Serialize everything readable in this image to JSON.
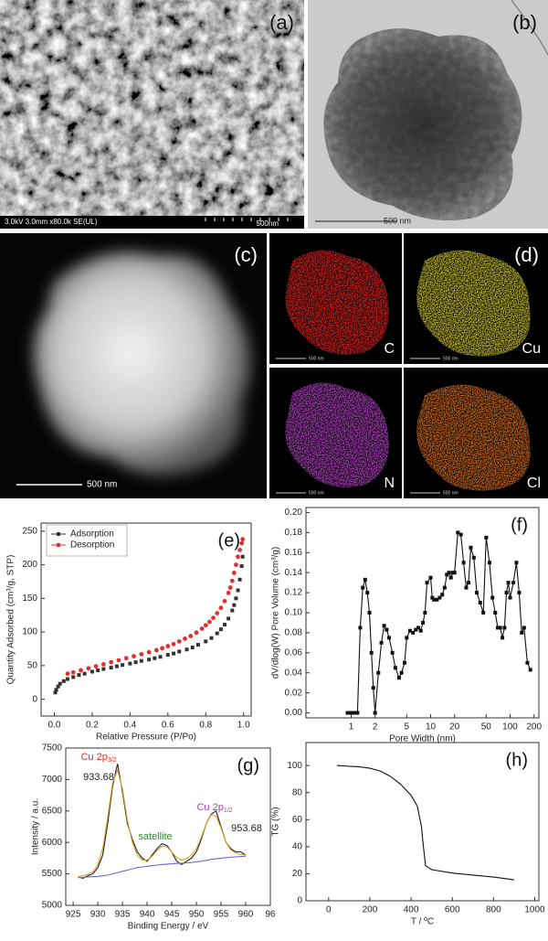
{
  "micrographs": {
    "a": {
      "label": "(a)",
      "info": "3.0kV 3.0mm x80.0k SE(UL)",
      "scale": "500nm"
    },
    "b": {
      "label": "(b)",
      "scale": "500 nm"
    },
    "c": {
      "label": "(c)",
      "scale": "500 nm"
    },
    "d": {
      "label": "(d)",
      "maps": [
        {
          "element": "C",
          "scale": "500 nm"
        },
        {
          "element": "Cu",
          "scale": "500 nm"
        },
        {
          "element": "N",
          "scale": "500 nm"
        },
        {
          "element": "Cl",
          "scale": "500 nm"
        }
      ]
    }
  },
  "chart_data": [
    {
      "type": "scatter",
      "label": "(e)",
      "xlabel": "Relative Pressure (P/Po)",
      "ylabel": "Quantity Adsorbed (cm³/g, STP)",
      "xlim": [
        -0.07,
        1.04
      ],
      "ylim": [
        -25,
        262
      ],
      "xticks": [
        {
          "value": 0,
          "label": "0.0"
        },
        {
          "value": 0.2,
          "label": "0.2"
        },
        {
          "value": 0.4,
          "label": "0.4"
        },
        {
          "value": 0.6,
          "label": "0.6"
        },
        {
          "value": 0.8,
          "label": "0.8"
        },
        {
          "value": 1,
          "label": "1.0"
        }
      ],
      "yticks": [
        0,
        50,
        100,
        150,
        200,
        250
      ],
      "legend": "upper left",
      "series": [
        {
          "name": "Adsorption",
          "color": "#333333",
          "marker": "square",
          "x": [
            0.005,
            0.01,
            0.02,
            0.03,
            0.05,
            0.07,
            0.1,
            0.13,
            0.16,
            0.2,
            0.23,
            0.26,
            0.3,
            0.33,
            0.36,
            0.4,
            0.43,
            0.46,
            0.5,
            0.53,
            0.56,
            0.6,
            0.63,
            0.66,
            0.7,
            0.73,
            0.76,
            0.8,
            0.83,
            0.86,
            0.88,
            0.9,
            0.92,
            0.94,
            0.95,
            0.96,
            0.97,
            0.98,
            0.99,
            0.995
          ],
          "values": [
            10,
            14,
            19,
            23,
            27,
            30,
            33,
            36,
            38,
            41,
            43,
            45,
            47,
            49,
            51,
            53,
            55,
            57,
            59,
            61,
            63,
            66,
            68,
            71,
            74,
            77,
            81,
            86,
            91,
            98,
            104,
            111,
            120,
            132,
            140,
            150,
            162,
            178,
            198,
            212
          ]
        },
        {
          "name": "Desorption",
          "color": "#e03030",
          "marker": "circle",
          "x": [
            0.995,
            0.99,
            0.98,
            0.97,
            0.96,
            0.95,
            0.94,
            0.93,
            0.92,
            0.9,
            0.88,
            0.86,
            0.84,
            0.82,
            0.8,
            0.78,
            0.75,
            0.72,
            0.69,
            0.66,
            0.63,
            0.6,
            0.57,
            0.54,
            0.5,
            0.46,
            0.42,
            0.38,
            0.34,
            0.3,
            0.26,
            0.22,
            0.18,
            0.14,
            0.1,
            0.07
          ],
          "values": [
            238,
            232,
            222,
            212,
            200,
            188,
            176,
            166,
            158,
            146,
            136,
            128,
            121,
            115,
            110,
            105,
            99,
            94,
            90,
            86,
            82,
            79,
            76,
            73,
            70,
            67,
            64,
            61,
            58,
            55,
            52,
            49,
            46,
            43,
            40,
            38
          ]
        }
      ]
    },
    {
      "type": "line",
      "label": "(f)",
      "xlabel": "Pore Width (nm)",
      "ylabel": "dV/dlog(W) Pore Volume (cm³/g)",
      "xscale": "log",
      "xlim": [
        0.27,
        230
      ],
      "ylim": [
        -0.005,
        0.205
      ],
      "xticks": [
        1,
        2,
        5,
        10,
        20,
        50,
        100,
        200
      ],
      "yticks": [
        {
          "value": 0,
          "label": "0.00"
        },
        {
          "value": 0.02,
          "label": "0.02"
        },
        {
          "value": 0.04,
          "label": "0.04"
        },
        {
          "value": 0.06,
          "label": "0.06"
        },
        {
          "value": 0.08,
          "label": "0.08"
        },
        {
          "value": 0.1,
          "label": "0.10"
        },
        {
          "value": 0.12,
          "label": "0.12"
        },
        {
          "value": 0.14,
          "label": "0.14"
        },
        {
          "value": 0.16,
          "label": "0.16"
        },
        {
          "value": 0.18,
          "label": "0.18"
        },
        {
          "value": 0.2,
          "label": "0.20"
        }
      ],
      "series": [
        {
          "color": "#111111",
          "marker": "square",
          "line": true,
          "x": [
            0.9,
            1.0,
            1.1,
            1.2,
            1.3,
            1.4,
            1.5,
            1.6,
            1.7,
            1.8,
            1.9,
            2.0,
            2.2,
            2.4,
            2.6,
            2.8,
            3.0,
            3.3,
            3.6,
            4.0,
            4.3,
            4.7,
            5.0,
            5.5,
            6.0,
            6.5,
            7.0,
            7.5,
            8.0,
            8.5,
            9.0,
            10,
            10.5,
            11,
            12,
            13,
            14,
            15,
            16,
            17,
            18,
            19,
            20,
            22,
            24,
            26,
            28,
            30,
            32,
            35,
            38,
            42,
            46,
            50,
            55,
            60,
            65,
            70,
            75,
            80,
            85,
            90,
            95,
            100,
            110,
            120,
            130,
            140,
            150,
            165,
            180
          ],
          "values": [
            0,
            0,
            0,
            0,
            0.085,
            0.125,
            0.133,
            0.12,
            0.1,
            0.06,
            0.025,
            0.0,
            0.04,
            0.07,
            0.087,
            0.083,
            0.075,
            0.06,
            0.045,
            0.035,
            0.04,
            0.05,
            0.075,
            0.082,
            0.08,
            0.083,
            0.085,
            0.082,
            0.09,
            0.1,
            0.13,
            0.135,
            0.115,
            0.113,
            0.113,
            0.115,
            0.118,
            0.125,
            0.138,
            0.14,
            0.135,
            0.14,
            0.14,
            0.18,
            0.178,
            0.15,
            0.125,
            0.13,
            0.165,
            0.155,
            0.12,
            0.11,
            0.1,
            0.175,
            0.15,
            0.115,
            0.1,
            0.085,
            0.085,
            0.075,
            0.085,
            0.12,
            0.13,
            0.115,
            0.13,
            0.15,
            0.12,
            0.08,
            0.085,
            0.05,
            0.043
          ]
        }
      ]
    },
    {
      "type": "line",
      "label": "(g)",
      "xlabel": "Binding Energy / eV",
      "ylabel": "Intensity / a.u.",
      "xlim": [
        923.5,
        965
      ],
      "ylim": [
        5000,
        7500
      ],
      "xticks": [
        925,
        930,
        935,
        940,
        945,
        950,
        955,
        960,
        {
          "value": 965,
          "label": "96"
        }
      ],
      "yticks": [
        5000,
        5500,
        6000,
        6500,
        7000,
        7500
      ],
      "x": [
        926,
        927,
        928,
        929,
        930,
        931,
        932,
        933,
        934,
        935,
        936,
        937,
        938,
        939,
        940,
        941,
        942,
        943,
        944,
        945,
        946,
        947,
        948,
        949,
        950,
        951,
        952,
        953,
        954,
        955,
        956,
        957,
        958,
        959,
        960
      ],
      "series": [
        {
          "color": "#222222",
          "line": true,
          "values": [
            5450,
            5430,
            5470,
            5500,
            5600,
            5800,
            6300,
            6900,
            7250,
            6800,
            6300,
            6050,
            5850,
            5750,
            5700,
            5800,
            5900,
            5980,
            5950,
            5850,
            5700,
            5650,
            5700,
            5750,
            5850,
            6050,
            6300,
            6450,
            6500,
            6250,
            6000,
            5900,
            5850,
            5850,
            5800
          ]
        },
        {
          "color": "#e0a020",
          "line": true,
          "values": [
            5460,
            5470,
            5490,
            5530,
            5650,
            5900,
            6400,
            6950,
            7150,
            6850,
            6350,
            6000,
            5800,
            5720,
            5720,
            5780,
            5870,
            5940,
            5930,
            5850,
            5760,
            5720,
            5740,
            5800,
            5900,
            6080,
            6300,
            6440,
            6420,
            6230,
            6000,
            5880,
            5830,
            5810,
            5800
          ]
        },
        {
          "color": "#6a6ad0",
          "line": true,
          "values": [
            5440,
            5445,
            5450,
            5455,
            5460,
            5470,
            5480,
            5500,
            5520,
            5540,
            5560,
            5580,
            5600,
            5610,
            5620,
            5630,
            5640,
            5650,
            5655,
            5660,
            5665,
            5670,
            5675,
            5680,
            5690,
            5700,
            5715,
            5730,
            5740,
            5750,
            5760,
            5765,
            5770,
            5775,
            5780
          ]
        }
      ],
      "annotations": [
        {
          "text": "Cu 2p",
          "sub": "3/2",
          "color": "#d03030"
        },
        {
          "text": "933.68",
          "color": "#222222"
        },
        {
          "text": "satellite",
          "color": "#2a8a2a"
        },
        {
          "text": "Cu 2p",
          "sub": "1/2",
          "color": "#b040b0"
        },
        {
          "text": "953.68",
          "color": "#222222"
        }
      ]
    },
    {
      "type": "line",
      "label": "(h)",
      "xlabel": "T / ºC",
      "ylabel": "TG (%)",
      "xlim": [
        -110,
        1020
      ],
      "ylim": [
        0,
        117
      ],
      "xticks": [
        0,
        200,
        400,
        600,
        800,
        1000
      ],
      "yticks": [
        0,
        20,
        40,
        60,
        80,
        100
      ],
      "series": [
        {
          "color": "#111111",
          "line": true,
          "x": [
            40,
            100,
            150,
            200,
            250,
            300,
            350,
            400,
            430,
            450,
            460,
            470,
            500,
            600,
            700,
            800,
            900
          ],
          "values": [
            100,
            99.5,
            99,
            98,
            96,
            92,
            86,
            78,
            70,
            55,
            40,
            26,
            23,
            20.5,
            19,
            17.5,
            15.5
          ]
        }
      ]
    }
  ]
}
